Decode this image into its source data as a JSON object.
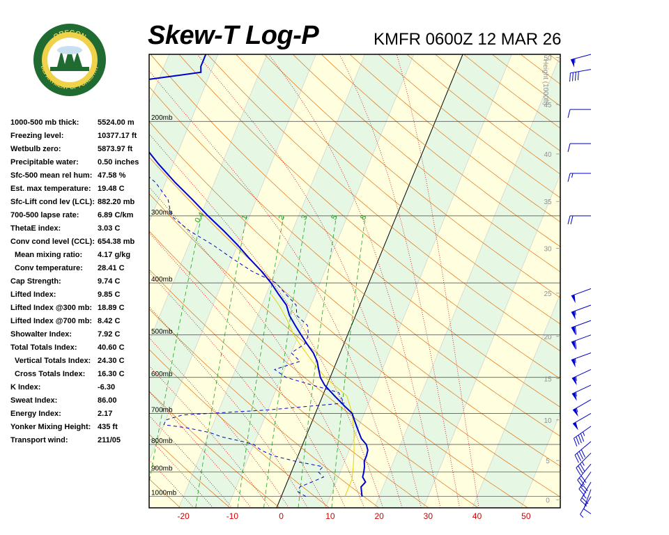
{
  "header": {
    "title": "Skew-T Log-P",
    "station": "KMFR 0600Z 12 MAR 26"
  },
  "logo": {
    "top_text": "OREGON",
    "bottom_text": "DEPARTMENT OF FORESTRY",
    "ring_color": "#1f6b32",
    "inner_color": "#f0d24a"
  },
  "indices": [
    {
      "label": "1000-500 mb thick:",
      "value": "5524.00 m",
      "indent": false
    },
    {
      "label": "Freezing level:",
      "value": "10377.17 ft",
      "indent": false
    },
    {
      "label": "Wetbulb zero:",
      "value": "5873.97 ft",
      "indent": false
    },
    {
      "label": "Precipitable water:",
      "value": "0.50 inches",
      "indent": false
    },
    {
      "label": "Sfc-500 mean rel hum:",
      "value": "47.58 %",
      "indent": false
    },
    {
      "label": "Est. max temperature:",
      "value": "19.48 C",
      "indent": false
    },
    {
      "label": "Sfc-Lift cond lev (LCL):",
      "value": "882.20 mb",
      "indent": false
    },
    {
      "label": "700-500 lapse rate:",
      "value": "6.89 C/km",
      "indent": false
    },
    {
      "label": "ThetaE index:",
      "value": "3.03 C",
      "indent": false
    },
    {
      "label": "Conv cond level (CCL):",
      "value": "654.38 mb",
      "indent": false
    },
    {
      "label": "Mean mixing ratio:",
      "value": "4.17 g/kg",
      "indent": true
    },
    {
      "label": "Conv temperature:",
      "value": "28.41 C",
      "indent": true
    },
    {
      "label": "Cap Strength:",
      "value": "9.74 C",
      "indent": false
    },
    {
      "label": "Lifted Index:",
      "value": "9.85 C",
      "indent": false
    },
    {
      "label": "Lifted Index @300 mb:",
      "value": "18.89 C",
      "indent": false
    },
    {
      "label": "Lifted Index @700 mb:",
      "value": "8.42 C",
      "indent": false
    },
    {
      "label": "Showalter Index:",
      "value": "7.92 C",
      "indent": false
    },
    {
      "label": "Total Totals Index:",
      "value": "40.60 C",
      "indent": false
    },
    {
      "label": "Vertical Totals Index:",
      "value": "24.30 C",
      "indent": true
    },
    {
      "label": "Cross Totals Index:",
      "value": "16.30 C",
      "indent": true
    },
    {
      "label": "K Index:",
      "value": "-6.30",
      "indent": false
    },
    {
      "label": "Sweat Index:",
      "value": "86.00",
      "indent": false
    },
    {
      "label": "Energy Index:",
      "value": "2.17",
      "indent": false
    },
    {
      "label": "Yonker Mixing Height:",
      "value": "435 ft",
      "indent": false
    },
    {
      "label": "Transport wind:",
      "value": "211/05",
      "indent": false
    }
  ],
  "chart_data": {
    "type": "line",
    "subtype": "skew-t log-p",
    "x_tick_labels": [
      "-20",
      "-10",
      "0",
      "10",
      "20",
      "30",
      "40",
      "50"
    ],
    "x_ticks": [
      -20,
      -10,
      0,
      10,
      20,
      30,
      40,
      50
    ],
    "xlim_at_1000mb": [
      -27,
      57
    ],
    "ylim_pressure_mb": [
      1050,
      150
    ],
    "y_scale": "log",
    "skew_deg_per_log10": 45,
    "pressure_levels": [
      {
        "p": 200,
        "label": "200mb"
      },
      {
        "p": 300,
        "label": "300mb"
      },
      {
        "p": 400,
        "label": "400mb"
      },
      {
        "p": 500,
        "label": "500mb"
      },
      {
        "p": 600,
        "label": "600mb"
      },
      {
        "p": 700,
        "label": "700mb"
      },
      {
        "p": 800,
        "label": "800mb"
      },
      {
        "p": 900,
        "label": "900mb"
      },
      {
        "p": 1000,
        "label": "1000mb"
      }
    ],
    "height_axis_label": "Height (1000ft)",
    "height_ticks": [
      {
        "p": 1015,
        "label": "0"
      },
      {
        "p": 857,
        "label": "5"
      },
      {
        "p": 720,
        "label": "10"
      },
      {
        "p": 603,
        "label": "15"
      },
      {
        "p": 503,
        "label": "20"
      },
      {
        "p": 418,
        "label": "25"
      },
      {
        "p": 345,
        "label": "30"
      },
      {
        "p": 282,
        "label": "35"
      },
      {
        "p": 230,
        "label": "40"
      },
      {
        "p": 186,
        "label": "45"
      },
      {
        "p": 152,
        "label": "50"
      }
    ],
    "height_label_partial": "Height",
    "mixing_ratio_labels": [
      "0.4",
      "1",
      "2",
      "3",
      "5",
      "8"
    ],
    "mixing_ratios": [
      0.4,
      1,
      2,
      3,
      5,
      8
    ],
    "temperature_profile": [
      {
        "p": 1000,
        "t": 16.5
      },
      {
        "p": 980,
        "t": 16.0
      },
      {
        "p": 960,
        "t": 15.5
      },
      {
        "p": 940,
        "t": 16.0
      },
      {
        "p": 920,
        "t": 15.0
      },
      {
        "p": 900,
        "t": 14.8
      },
      {
        "p": 880,
        "t": 14.5
      },
      {
        "p": 860,
        "t": 14.0
      },
      {
        "p": 840,
        "t": 14.0
      },
      {
        "p": 820,
        "t": 13.8
      },
      {
        "p": 800,
        "t": 13.0
      },
      {
        "p": 780,
        "t": 11.5
      },
      {
        "p": 760,
        "t": 10.5
      },
      {
        "p": 740,
        "t": 9.5
      },
      {
        "p": 720,
        "t": 8.5
      },
      {
        "p": 700,
        "t": 7.5
      },
      {
        "p": 680,
        "t": 5.5
      },
      {
        "p": 650,
        "t": 2.5
      },
      {
        "p": 620,
        "t": -0.5
      },
      {
        "p": 600,
        "t": -2.0
      },
      {
        "p": 580,
        "t": -3.0
      },
      {
        "p": 560,
        "t": -4.0
      },
      {
        "p": 540,
        "t": -5.5
      },
      {
        "p": 520,
        "t": -7.5
      },
      {
        "p": 500,
        "t": -9.5
      },
      {
        "p": 480,
        "t": -11.5
      },
      {
        "p": 460,
        "t": -13.5
      },
      {
        "p": 440,
        "t": -15.0
      },
      {
        "p": 420,
        "t": -17.5
      },
      {
        "p": 400,
        "t": -20.0
      },
      {
        "p": 380,
        "t": -23.0
      },
      {
        "p": 360,
        "t": -26.5
      },
      {
        "p": 340,
        "t": -30.0
      },
      {
        "p": 320,
        "t": -34.0
      },
      {
        "p": 300,
        "t": -38.5
      },
      {
        "p": 280,
        "t": -43.0
      },
      {
        "p": 260,
        "t": -48.0
      },
      {
        "p": 240,
        "t": -53.0
      },
      {
        "p": 220,
        "t": -58.0
      },
      {
        "p": 200,
        "t": -62.5
      },
      {
        "p": 185,
        "t": -66.0
      },
      {
        "p": 172,
        "t": -68.5
      },
      {
        "p": 168,
        "t": -64.0
      },
      {
        "p": 165,
        "t": -58.0
      },
      {
        "p": 162,
        "t": -52.0
      },
      {
        "p": 158,
        "t": -52.5
      },
      {
        "p": 150,
        "t": -52.5
      }
    ],
    "dewpoint_profile": [
      {
        "p": 1000,
        "td": 5.0
      },
      {
        "p": 980,
        "td": 3.0
      },
      {
        "p": 960,
        "td": 3.0
      },
      {
        "p": 940,
        "td": 5.0
      },
      {
        "p": 920,
        "td": 7.0
      },
      {
        "p": 900,
        "td": 5.5
      },
      {
        "p": 880,
        "td": 6.0
      },
      {
        "p": 860,
        "td": 0.0
      },
      {
        "p": 840,
        "td": -5.0
      },
      {
        "p": 820,
        "td": -8.0
      },
      {
        "p": 800,
        "td": -10.0
      },
      {
        "p": 790,
        "td": -12.5
      },
      {
        "p": 775,
        "td": -17.0
      },
      {
        "p": 760,
        "td": -20.0
      },
      {
        "p": 745,
        "td": -25.0
      },
      {
        "p": 735,
        "td": -30.0
      },
      {
        "p": 720,
        "td": -30.0
      },
      {
        "p": 705,
        "td": -27.0
      },
      {
        "p": 690,
        "td": -10.0
      },
      {
        "p": 670,
        "td": 5.0
      },
      {
        "p": 655,
        "td": 4.0
      },
      {
        "p": 640,
        "td": 3.0
      },
      {
        "p": 620,
        "td": -3.0
      },
      {
        "p": 600,
        "td": -9.0
      },
      {
        "p": 580,
        "td": -12.0
      },
      {
        "p": 560,
        "td": -7.5
      },
      {
        "p": 540,
        "td": -10.0
      },
      {
        "p": 520,
        "td": -8.0
      },
      {
        "p": 500,
        "td": -8.0
      },
      {
        "p": 480,
        "td": -9.0
      },
      {
        "p": 460,
        "td": -12.0
      },
      {
        "p": 440,
        "td": -13.0
      },
      {
        "p": 420,
        "td": -16.0
      },
      {
        "p": 400,
        "td": -19.0
      },
      {
        "p": 380,
        "td": -25.0
      },
      {
        "p": 360,
        "td": -30.0
      },
      {
        "p": 340,
        "td": -35.0
      },
      {
        "p": 320,
        "td": -41.0
      },
      {
        "p": 300,
        "td": -46.0
      },
      {
        "p": 280,
        "td": -48.0
      },
      {
        "p": 260,
        "td": -52.0
      },
      {
        "p": 240,
        "td": -58.0
      },
      {
        "p": 225,
        "td": -64.0
      },
      {
        "p": 210,
        "td": -70.0
      },
      {
        "p": 200,
        "td": -74.0
      },
      {
        "p": 185,
        "td": -79.0
      },
      {
        "p": 175,
        "td": -82.0
      },
      {
        "p": 170,
        "td": -80.0
      },
      {
        "p": 165,
        "td": -86.0
      },
      {
        "p": 160,
        "td": -83.0
      },
      {
        "p": 155,
        "td": -80.0
      },
      {
        "p": 150,
        "td": -78.0
      }
    ],
    "parcel_profile": [
      {
        "p": 1000,
        "t": 13.0
      },
      {
        "p": 930,
        "t": 13.0
      },
      {
        "p": 880,
        "t": 12.2
      },
      {
        "p": 820,
        "t": 11.0
      },
      {
        "p": 760,
        "t": 9.5
      },
      {
        "p": 700,
        "t": 7.5
      },
      {
        "p": 650,
        "t": 5.0
      },
      {
        "p": 600,
        "t": -1.0
      },
      {
        "p": 560,
        "t": -5.0
      },
      {
        "p": 520,
        "t": -9.0
      },
      {
        "p": 500,
        "t": -11.0
      },
      {
        "p": 470,
        "t": -13.5
      },
      {
        "p": 440,
        "t": -16.5
      },
      {
        "p": 420,
        "t": -19.0
      }
    ],
    "wind_barbs": [
      {
        "p": 1000,
        "dir": 211,
        "spd": 5
      },
      {
        "p": 970,
        "dir": 200,
        "spd": 10
      },
      {
        "p": 940,
        "dir": 210,
        "spd": 25
      },
      {
        "p": 900,
        "dir": 215,
        "spd": 30
      },
      {
        "p": 870,
        "dir": 220,
        "spd": 30
      },
      {
        "p": 830,
        "dir": 225,
        "spd": 35
      },
      {
        "p": 790,
        "dir": 230,
        "spd": 40
      },
      {
        "p": 740,
        "dir": 235,
        "spd": 45
      },
      {
        "p": 700,
        "dir": 240,
        "spd": 50
      },
      {
        "p": 660,
        "dir": 240,
        "spd": 55
      },
      {
        "p": 620,
        "dir": 245,
        "spd": 55
      },
      {
        "p": 580,
        "dir": 245,
        "spd": 55
      },
      {
        "p": 540,
        "dir": 250,
        "spd": 55
      },
      {
        "p": 500,
        "dir": 250,
        "spd": 60
      },
      {
        "p": 470,
        "dir": 250,
        "spd": 60
      },
      {
        "p": 440,
        "dir": 250,
        "spd": 55
      },
      {
        "p": 410,
        "dir": 250,
        "spd": 50
      },
      {
        "p": 300,
        "dir": 270,
        "spd": 20
      },
      {
        "p": 250,
        "dir": 270,
        "spd": 15
      },
      {
        "p": 220,
        "dir": 270,
        "spd": 10
      },
      {
        "p": 190,
        "dir": 270,
        "spd": 10
      },
      {
        "p": 160,
        "dir": 260,
        "spd": 40
      },
      {
        "p": 150,
        "dir": 255,
        "spd": 55
      }
    ],
    "colors": {
      "temperature": "#0000cc",
      "dewpoint": "#0000cc",
      "parcel": "#e8d000",
      "isotherm": "#c8c8c8",
      "isotherm_zero": "#000000",
      "isobar": "#404040",
      "dry_adiabat": "#e07010",
      "moist_adiabat": "#cc0000",
      "mixing_ratio": "#20a020",
      "band_light": "#ffffe0",
      "band_green": "#e6f8e4",
      "x_tick_color": "#cc0000",
      "height_tick_color": "#909090",
      "barb": "#0000cc"
    }
  }
}
